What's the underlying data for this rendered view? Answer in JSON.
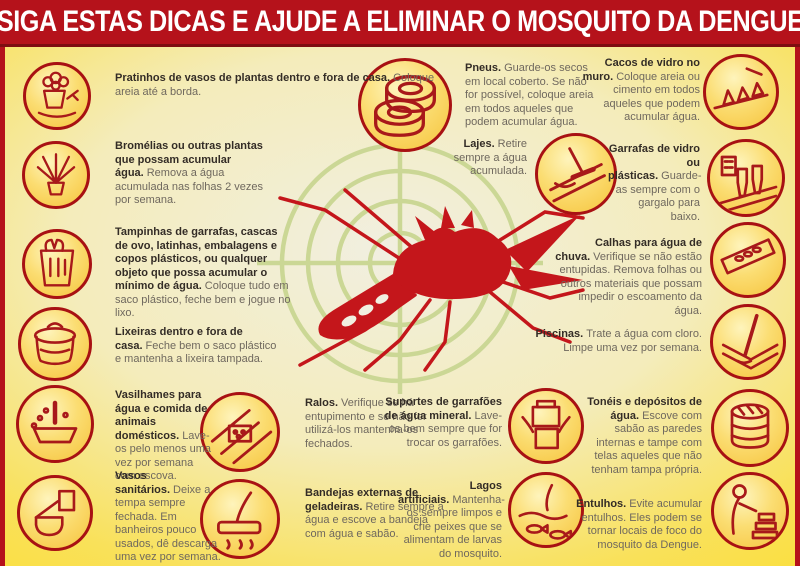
{
  "header": {
    "title": "SIGA ESTAS DICAS E AJUDE A ELIMINAR O MOSQUITO DA DENGUE"
  },
  "colors": {
    "header_bg": "#B5121B",
    "background_yellow": "#FBDB2C",
    "background_center": "#F1EFE0",
    "circle_fill": "#F6C33C",
    "circle_border": "#A81113",
    "artwork_red": "#A8191A",
    "mosquito_red": "#C4161B",
    "target_green": "#CBD795",
    "title_text": "#332C26",
    "body_text": "#6F685E"
  },
  "center": {
    "mosquito_icon": "mosquito-icon",
    "target_icon": "crosshair-target-icon"
  },
  "tips": [
    {
      "icon": "flower-pot-icon",
      "title": "Pratinhos de vasos de plantas dentro e fora de casa.",
      "body": "Coloque areia até a borda."
    },
    {
      "icon": "bromeliad-icon",
      "title": "Bromélias ou outras plantas que possam acumular água.",
      "body": "Remova a água acumulada nas folhas 2 vezes por semana."
    },
    {
      "icon": "plastic-bag-icon",
      "title": "Tampinhas de garrafas, cascas de ovo, latinhas, embalagens e copos plásticos, ou qualquer objeto que possa acumular o mínimo de água.",
      "body": "Coloque tudo em saco plástico, feche bem e jogue no lixo."
    },
    {
      "icon": "trash-bin-icon",
      "title": "Lixeiras dentro e fora de casa.",
      "body": "Feche bem o saco plástico e mantenha a lixeira tampada."
    },
    {
      "icon": "pet-bowl-icon",
      "title": "Vasilhames para água e comida de animais domésticos.",
      "body": "Lave-os pelo menos uma vez por semana com escova."
    },
    {
      "icon": "toilet-icon",
      "title": "Vasos sanitários.",
      "body": "Deixe a tempa sempre fechada. Em banheiros pouco usados, dê descarga uma vez por semana."
    },
    {
      "icon": "tires-icon",
      "title": "Pneus.",
      "body": "Guarde-os secos em local coberto. Se não for possível, coloque areia em todos aqueles que podem acumular água."
    },
    {
      "icon": "roof-slab-icon",
      "title": "Lajes.",
      "body": "Retire sempre a água acumulada."
    },
    {
      "icon": "glass-shards-icon",
      "title": "Cacos de vidro no muro.",
      "body": "Coloque areia ou cimento em todos aqueles que podem acumular água."
    },
    {
      "icon": "bottles-icon",
      "title": "Garrafas de vidro ou plásticas.",
      "body": "Guarde-as sempre com o gargalo para baixo."
    },
    {
      "icon": "rain-gutter-icon",
      "title": "Calhas para água de chuva.",
      "body": "Verifique se não estão entupidas. Remova folhas ou outros materiais que possam impedir o escoamento da água."
    },
    {
      "icon": "swimming-pool-icon",
      "title": "Piscinas.",
      "body": "Trate a água com cloro. Limpe uma vez por semana."
    },
    {
      "icon": "drain-icon",
      "title": "Ralos.",
      "body": "Verifique se há entupimento e se não for utilizá-los mantenha-os fechados."
    },
    {
      "icon": "fridge-tray-icon",
      "title": "Bandejas externas de geladeiras.",
      "body": "Retire sempre a água e escove a bandeja com água e sabão."
    },
    {
      "icon": "water-jug-stand-icon",
      "title": "Suportes de garrafões de água mineral.",
      "body": "Lave-os bem sempre que for trocar os garrafões."
    },
    {
      "icon": "artificial-lake-icon",
      "title": "Lagos artificiais.",
      "body": "Mantenha-os sempre limpos e crie peixes que se alimentam de larvas do mosquito."
    },
    {
      "icon": "water-barrel-icon",
      "title": "Tonéis e depósitos de água.",
      "body": "Escove com sabão as paredes internas e tampe com telas aqueles que não tenham tampa própria."
    },
    {
      "icon": "rubble-icon",
      "title": "Entulhos.",
      "body": "Evite acumular entulhos. Eles podem se tornar locais de foco do mosquito da Dengue."
    }
  ]
}
